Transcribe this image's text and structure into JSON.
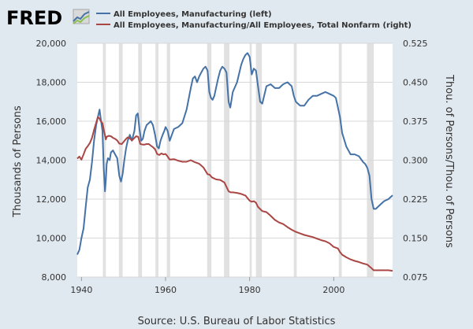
{
  "header": {
    "logo_text": "FRED",
    "logo_mark": "chart-line-logo"
  },
  "chart_data": {
    "type": "line",
    "legend": [
      {
        "label": "All Employees, Manufacturing (left)",
        "color": "#4572a7"
      },
      {
        "label": "All Employees, Manufacturing/All Employees, Total Nonfarm (right)",
        "color": "#aa4643"
      }
    ],
    "ylabel_left": "Thousands of Persons",
    "ylabel_right": "Thou. of Persons/Thou. of Persons",
    "source": "Source: U.S. Bureau of Labor Statistics",
    "xlim": [
      1939,
      2014
    ],
    "ylim_left": [
      8000,
      20000
    ],
    "ylim_right": [
      0.075,
      0.525
    ],
    "x_ticks": [
      1940,
      1960,
      1980,
      2000
    ],
    "y_ticks_left": [
      "8,000",
      "10,000",
      "12,000",
      "14,000",
      "16,000",
      "18,000",
      "20,000"
    ],
    "y_ticks_left_values": [
      8000,
      10000,
      12000,
      14000,
      16000,
      18000,
      20000
    ],
    "y_ticks_right": [
      "0.075",
      "0.150",
      "0.225",
      "0.300",
      "0.375",
      "0.450",
      "0.525"
    ],
    "y_ticks_right_values": [
      0.075,
      0.15,
      0.225,
      0.3,
      0.375,
      0.45,
      0.525
    ],
    "recessions": [
      [
        1945.1,
        1945.8
      ],
      [
        1948.9,
        1949.8
      ],
      [
        1953.5,
        1954.4
      ],
      [
        1957.6,
        1958.3
      ],
      [
        1960.3,
        1961.1
      ],
      [
        1969.9,
        1970.9
      ],
      [
        1973.9,
        1975.2
      ],
      [
        1980.0,
        1980.5
      ],
      [
        1981.5,
        1982.9
      ],
      [
        1990.5,
        1991.2
      ],
      [
        2001.2,
        2001.9
      ],
      [
        2007.9,
        2009.5
      ]
    ],
    "series": [
      {
        "name": "All Employees, Manufacturing",
        "axis": "left",
        "color": "#4572a7",
        "x": [
          1939.0,
          1939.5,
          1940.0,
          1940.5,
          1941.0,
          1941.5,
          1942.0,
          1942.5,
          1943.0,
          1943.5,
          1943.9,
          1944.3,
          1944.6,
          1945.0,
          1945.3,
          1945.6,
          1945.8,
          1946.0,
          1946.3,
          1946.7,
          1947.0,
          1947.5,
          1948.0,
          1948.5,
          1949.0,
          1949.4,
          1949.8,
          1950.2,
          1950.6,
          1951.0,
          1951.5,
          1952.0,
          1952.6,
          1953.0,
          1953.4,
          1953.8,
          1954.2,
          1954.6,
          1955.0,
          1955.5,
          1956.0,
          1956.5,
          1957.0,
          1957.5,
          1958.0,
          1958.4,
          1958.8,
          1959.3,
          1959.7,
          1960.0,
          1960.5,
          1961.0,
          1961.5,
          1962.0,
          1963.0,
          1964.0,
          1965.0,
          1966.0,
          1966.5,
          1967.0,
          1967.5,
          1968.0,
          1968.5,
          1969.0,
          1969.5,
          1970.0,
          1970.4,
          1970.8,
          1971.2,
          1971.6,
          1972.0,
          1972.5,
          1973.0,
          1973.5,
          1974.0,
          1974.5,
          1975.0,
          1975.4,
          1976.0,
          1977.0,
          1978.0,
          1978.5,
          1979.0,
          1979.5,
          1980.0,
          1980.5,
          1981.0,
          1981.5,
          1982.0,
          1982.5,
          1983.0,
          1984.0,
          1985.0,
          1986.0,
          1987.0,
          1988.0,
          1989.0,
          1990.0,
          1990.5,
          1991.0,
          1991.5,
          1992.0,
          1993.0,
          1994.0,
          1995.0,
          1996.0,
          1997.0,
          1998.0,
          1999.0,
          2000.0,
          2000.5,
          2001.0,
          2001.5,
          2002.0,
          2003.0,
          2004.0,
          2005.0,
          2006.0,
          2007.0,
          2007.5,
          2008.0,
          2008.5,
          2009.0,
          2009.5,
          2010.0,
          2011.0,
          2012.0,
          2013.0,
          2014.0
        ],
        "values": [
          9150,
          9400,
          10000,
          10500,
          11600,
          12600,
          13000,
          13900,
          15000,
          15800,
          16200,
          16600,
          16100,
          15500,
          13600,
          12400,
          13000,
          13800,
          14100,
          14000,
          14400,
          14500,
          14300,
          14100,
          13200,
          12900,
          13300,
          14000,
          14600,
          15000,
          15300,
          15000,
          15500,
          16300,
          16400,
          15600,
          15000,
          15100,
          15500,
          15800,
          15900,
          16000,
          15800,
          15300,
          14700,
          14600,
          15000,
          15300,
          15500,
          15700,
          15500,
          15000,
          15300,
          15600,
          15700,
          15900,
          16600,
          17700,
          18200,
          18300,
          18000,
          18300,
          18500,
          18700,
          18800,
          18600,
          17500,
          17200,
          17100,
          17300,
          17700,
          18200,
          18600,
          18800,
          18700,
          18500,
          17000,
          16700,
          17500,
          18000,
          18900,
          19200,
          19400,
          19500,
          19300,
          18400,
          18700,
          18600,
          17800,
          17000,
          16900,
          17800,
          17900,
          17700,
          17700,
          17900,
          18000,
          17800,
          17300,
          17000,
          16900,
          16800,
          16800,
          17100,
          17300,
          17300,
          17400,
          17500,
          17400,
          17300,
          17200,
          16700,
          16200,
          15400,
          14700,
          14300,
          14300,
          14200,
          13900,
          13800,
          13600,
          13200,
          12000,
          11500,
          11500,
          11700,
          11900,
          12000,
          12200
        ]
      },
      {
        "name": "All Employees, Manufacturing/All Employees, Total Nonfarm",
        "axis": "right",
        "color": "#aa4643",
        "x": [
          1939.0,
          1939.5,
          1940.0,
          1940.5,
          1941.0,
          1941.5,
          1942.0,
          1942.5,
          1943.0,
          1943.5,
          1943.9,
          1944.3,
          1944.6,
          1945.0,
          1945.4,
          1945.8,
          1946.0,
          1946.5,
          1947.0,
          1947.5,
          1948.0,
          1948.5,
          1949.0,
          1949.6,
          1950.0,
          1950.5,
          1951.0,
          1951.5,
          1952.0,
          1952.5,
          1953.0,
          1953.5,
          1954.0,
          1954.6,
          1955.0,
          1955.5,
          1956.0,
          1956.5,
          1957.0,
          1957.5,
          1958.0,
          1958.5,
          1959.0,
          1959.5,
          1960.0,
          1960.5,
          1961.0,
          1962.0,
          1963.0,
          1964.0,
          1965.0,
          1966.0,
          1967.0,
          1968.0,
          1969.0,
          1970.0,
          1970.5,
          1971.0,
          1972.0,
          1973.0,
          1974.0,
          1975.0,
          1975.5,
          1976.0,
          1977.0,
          1978.0,
          1979.0,
          1980.0,
          1980.5,
          1981.0,
          1981.5,
          1982.0,
          1983.0,
          1984.0,
          1985.0,
          1986.0,
          1987.0,
          1988.0,
          1989.0,
          1990.0,
          1991.0,
          1992.0,
          1993.0,
          1994.0,
          1995.0,
          1996.0,
          1997.0,
          1998.0,
          1999.0,
          2000.0,
          2001.0,
          2001.5,
          2002.0,
          2003.0,
          2004.0,
          2005.0,
          2006.0,
          2007.0,
          2008.0,
          2009.0,
          2009.5,
          2010.0,
          2011.0,
          2012.0,
          2013.0,
          2014.0
        ],
        "values": [
          0.303,
          0.307,
          0.301,
          0.311,
          0.322,
          0.327,
          0.333,
          0.343,
          0.358,
          0.372,
          0.383,
          0.38,
          0.375,
          0.371,
          0.355,
          0.34,
          0.345,
          0.347,
          0.346,
          0.343,
          0.341,
          0.338,
          0.332,
          0.331,
          0.335,
          0.34,
          0.344,
          0.342,
          0.338,
          0.342,
          0.346,
          0.345,
          0.331,
          0.33,
          0.33,
          0.331,
          0.331,
          0.328,
          0.325,
          0.321,
          0.312,
          0.31,
          0.313,
          0.311,
          0.312,
          0.307,
          0.301,
          0.302,
          0.299,
          0.297,
          0.297,
          0.3,
          0.296,
          0.293,
          0.286,
          0.273,
          0.272,
          0.267,
          0.263,
          0.262,
          0.257,
          0.24,
          0.238,
          0.238,
          0.237,
          0.235,
          0.232,
          0.222,
          0.22,
          0.221,
          0.218,
          0.21,
          0.202,
          0.2,
          0.193,
          0.185,
          0.18,
          0.177,
          0.171,
          0.166,
          0.162,
          0.159,
          0.156,
          0.154,
          0.152,
          0.149,
          0.146,
          0.144,
          0.14,
          0.133,
          0.13,
          0.123,
          0.118,
          0.113,
          0.109,
          0.106,
          0.104,
          0.101,
          0.099,
          0.092,
          0.088,
          0.088,
          0.088,
          0.088,
          0.088,
          0.087
        ]
      }
    ]
  }
}
